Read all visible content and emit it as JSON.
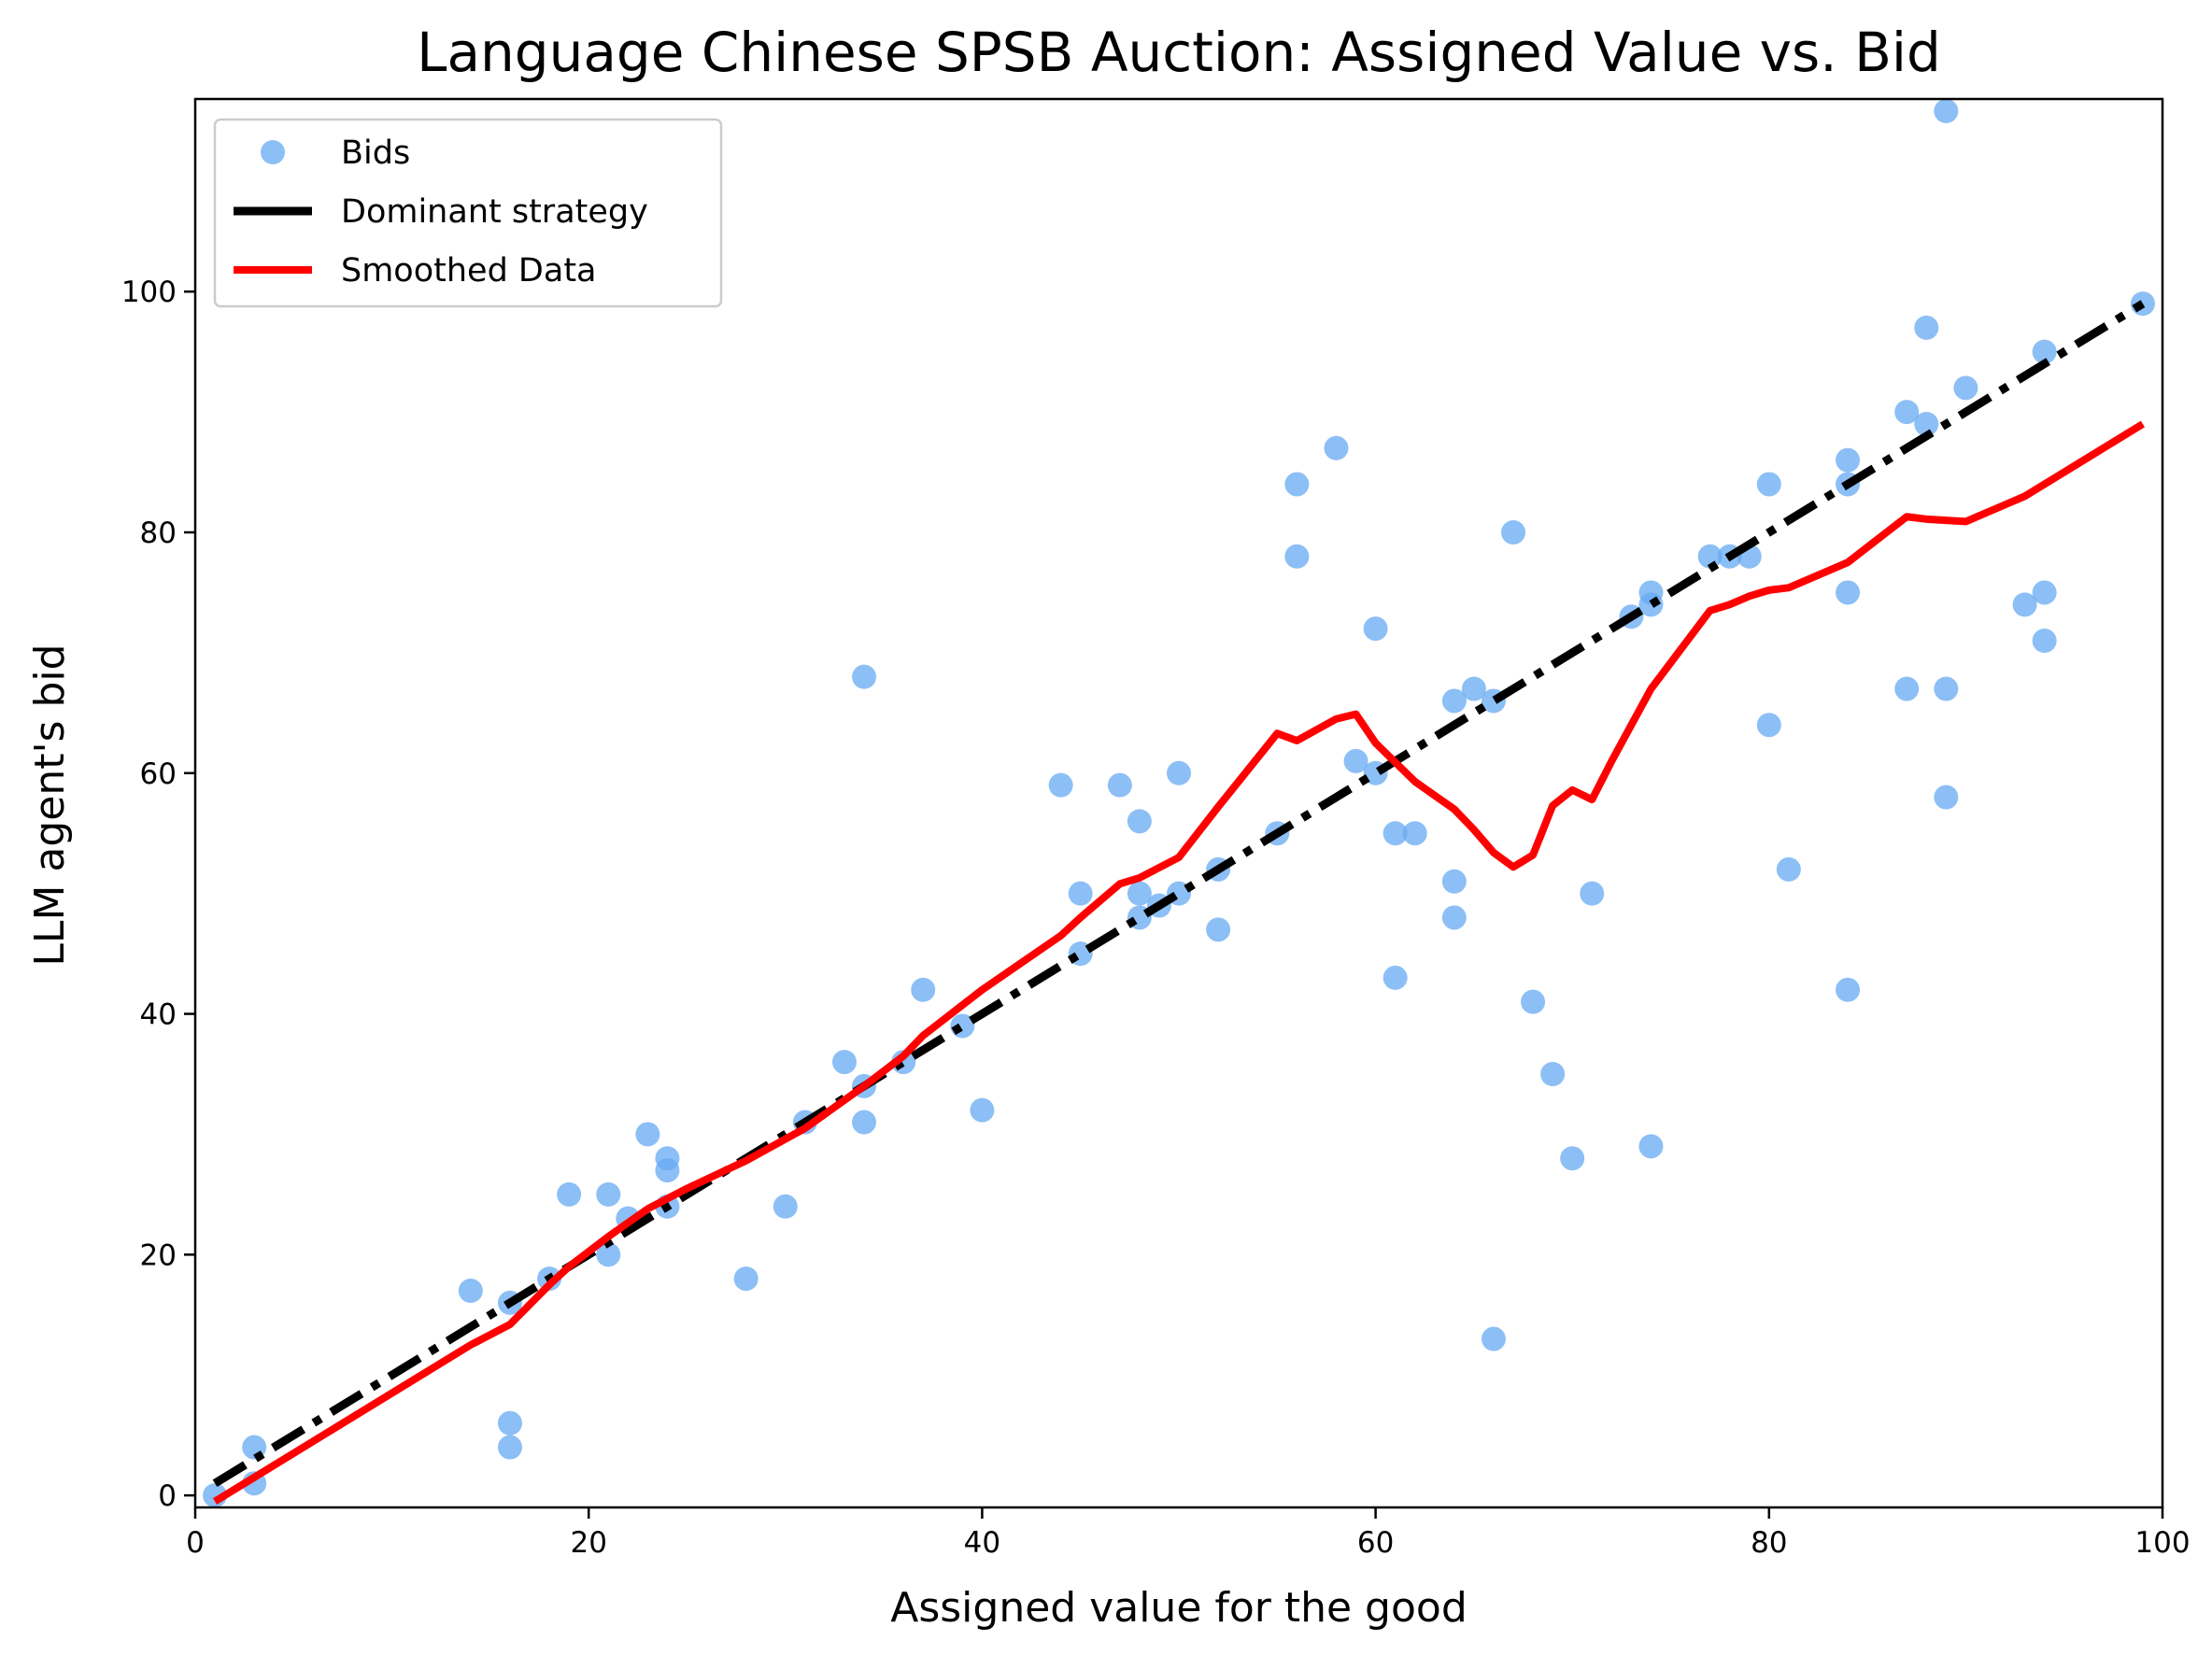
{
  "chart_data": {
    "type": "scatter",
    "title": "Language Chinese SPSB Auction: Assigned Value vs. Bid",
    "xlabel": "Assigned value for the good",
    "ylabel": "LLM agent's bid",
    "xlim": [
      0,
      100
    ],
    "ylim": [
      -1,
      116
    ],
    "xticks": [
      0,
      20,
      40,
      60,
      80,
      100
    ],
    "yticks": [
      0,
      20,
      40,
      60,
      80,
      100
    ],
    "grid": false,
    "legend_position": "top-left",
    "colors": {
      "bids": "#66aaf2",
      "dominant": "#000000",
      "smoothed": "#ff0000"
    },
    "series": [
      {
        "name": "Bids",
        "kind": "scatter",
        "points": [
          [
            1,
            0
          ],
          [
            3,
            4
          ],
          [
            3,
            1
          ],
          [
            14,
            17
          ],
          [
            16,
            16
          ],
          [
            16,
            6
          ],
          [
            16,
            4
          ],
          [
            18,
            18
          ],
          [
            19,
            25
          ],
          [
            21,
            25
          ],
          [
            21,
            20
          ],
          [
            22,
            23
          ],
          [
            23,
            30
          ],
          [
            24,
            28
          ],
          [
            24,
            27
          ],
          [
            24,
            24
          ],
          [
            28,
            18
          ],
          [
            30,
            24
          ],
          [
            31,
            31
          ],
          [
            33,
            36
          ],
          [
            34,
            34
          ],
          [
            34,
            31
          ],
          [
            34,
            68
          ],
          [
            36,
            36
          ],
          [
            37,
            42
          ],
          [
            39,
            39
          ],
          [
            40,
            32
          ],
          [
            44,
            59
          ],
          [
            45,
            50
          ],
          [
            45,
            45
          ],
          [
            47,
            59
          ],
          [
            48,
            56
          ],
          [
            48,
            50
          ],
          [
            48,
            48
          ],
          [
            49,
            49
          ],
          [
            50,
            60
          ],
          [
            50,
            50
          ],
          [
            52,
            52
          ],
          [
            52,
            47
          ],
          [
            55,
            55
          ],
          [
            56,
            84
          ],
          [
            56,
            78
          ],
          [
            58,
            87
          ],
          [
            59,
            61
          ],
          [
            60,
            72
          ],
          [
            60,
            60
          ],
          [
            61,
            55
          ],
          [
            61,
            43
          ],
          [
            62,
            55
          ],
          [
            64,
            66
          ],
          [
            64,
            51
          ],
          [
            64,
            48
          ],
          [
            65,
            67
          ],
          [
            66,
            66
          ],
          [
            66,
            13
          ],
          [
            67,
            80
          ],
          [
            68,
            41
          ],
          [
            69,
            35
          ],
          [
            70,
            28
          ],
          [
            71,
            50
          ],
          [
            73,
            73
          ],
          [
            74,
            75
          ],
          [
            74,
            74
          ],
          [
            74,
            29
          ],
          [
            77,
            78
          ],
          [
            78,
            78
          ],
          [
            79,
            78
          ],
          [
            80,
            84
          ],
          [
            80,
            64
          ],
          [
            81,
            52
          ],
          [
            84,
            86
          ],
          [
            84,
            84
          ],
          [
            84,
            75
          ],
          [
            84,
            42
          ],
          [
            87,
            90
          ],
          [
            87,
            67
          ],
          [
            88,
            97
          ],
          [
            88,
            89
          ],
          [
            89,
            115
          ],
          [
            89,
            67
          ],
          [
            89,
            58
          ],
          [
            90,
            92
          ],
          [
            93,
            74
          ],
          [
            94,
            95
          ],
          [
            94,
            75
          ],
          [
            94,
            71
          ],
          [
            99,
            99
          ]
        ]
      },
      {
        "name": "Dominant strategy",
        "kind": "line",
        "points": [
          [
            1,
            1
          ],
          [
            99,
            99
          ]
        ]
      },
      {
        "name": "Smoothed Data",
        "kind": "line",
        "points": [
          [
            1,
            -0.5
          ],
          [
            3,
            1.5
          ],
          [
            6,
            4.5
          ],
          [
            10,
            8.5
          ],
          [
            14,
            12.5
          ],
          [
            16,
            14.2
          ],
          [
            18,
            17.5
          ],
          [
            19,
            19
          ],
          [
            21,
            21.5
          ],
          [
            23,
            23.8
          ],
          [
            25,
            25.5
          ],
          [
            28,
            27.8
          ],
          [
            31,
            30.5
          ],
          [
            34,
            34
          ],
          [
            36,
            36.5
          ],
          [
            37,
            38.2
          ],
          [
            40,
            42
          ],
          [
            44,
            46.5
          ],
          [
            45,
            48
          ],
          [
            47,
            50.8
          ],
          [
            48,
            51.3
          ],
          [
            50,
            53
          ],
          [
            52,
            57.2
          ],
          [
            55,
            63.3
          ],
          [
            56,
            62.7
          ],
          [
            58,
            64.5
          ],
          [
            59,
            64.9
          ],
          [
            60,
            62.5
          ],
          [
            62,
            59.3
          ],
          [
            64,
            57
          ],
          [
            65,
            55.3
          ],
          [
            66,
            53.4
          ],
          [
            67,
            52.2
          ],
          [
            68,
            53.2
          ],
          [
            69,
            57.3
          ],
          [
            70,
            58.6
          ],
          [
            71,
            57.8
          ],
          [
            72,
            61
          ],
          [
            74,
            67
          ],
          [
            77,
            73.5
          ],
          [
            78,
            74
          ],
          [
            79,
            74.7
          ],
          [
            80,
            75.2
          ],
          [
            81,
            75.4
          ],
          [
            84,
            77.5
          ],
          [
            87,
            81.3
          ],
          [
            88,
            81.1
          ],
          [
            90,
            80.9
          ],
          [
            93,
            83
          ],
          [
            99,
            89
          ]
        ]
      }
    ]
  }
}
